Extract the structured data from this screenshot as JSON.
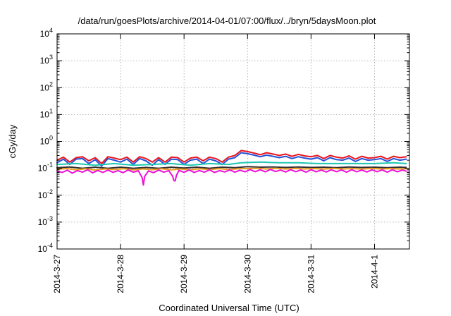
{
  "chart_data": {
    "type": "line",
    "title": "/data/run/goesPlots/archive/2014-04-01/07:00/flux/../bryn/5daysMoon.plot",
    "xlabel": "Coordinated Universal Time (UTC)",
    "ylabel": "cGy/day",
    "yscale": "log",
    "ylim": [
      0.0001,
      10000
    ],
    "xlim_days": [
      0,
      5.55
    ],
    "grid": true,
    "legend": "none",
    "yticks": [
      {
        "value": 0.0001,
        "mantissa": "10",
        "exp": "-4"
      },
      {
        "value": 0.001,
        "mantissa": "10",
        "exp": "-3"
      },
      {
        "value": 0.01,
        "mantissa": "10",
        "exp": "-2"
      },
      {
        "value": 0.1,
        "mantissa": "10",
        "exp": "-1"
      },
      {
        "value": 1,
        "mantissa": "10",
        "exp": "0"
      },
      {
        "value": 10,
        "mantissa": "10",
        "exp": "1"
      },
      {
        "value": 100,
        "mantissa": "10",
        "exp": "2"
      },
      {
        "value": 1000,
        "mantissa": "10",
        "exp": "3"
      },
      {
        "value": 10000,
        "mantissa": "10",
        "exp": "4"
      }
    ],
    "xticks": [
      {
        "day": 0,
        "label": "2014-3-27"
      },
      {
        "day": 1,
        "label": "2014-3-28"
      },
      {
        "day": 2,
        "label": "2014-3-29"
      },
      {
        "day": 3,
        "label": "2014-3-30"
      },
      {
        "day": 4,
        "label": "2014-3-31"
      },
      {
        "day": 5,
        "label": "2014-4-1"
      }
    ],
    "series": [
      {
        "color": "#e8141e",
        "points": [
          [
            0,
            0.2
          ],
          [
            0.1,
            0.26
          ],
          [
            0.2,
            0.17
          ],
          [
            0.3,
            0.25
          ],
          [
            0.4,
            0.27
          ],
          [
            0.5,
            0.19
          ],
          [
            0.6,
            0.25
          ],
          [
            0.7,
            0.15
          ],
          [
            0.8,
            0.27
          ],
          [
            0.9,
            0.24
          ],
          [
            1.0,
            0.21
          ],
          [
            1.1,
            0.26
          ],
          [
            1.2,
            0.17
          ],
          [
            1.3,
            0.27
          ],
          [
            1.4,
            0.23
          ],
          [
            1.5,
            0.17
          ],
          [
            1.6,
            0.25
          ],
          [
            1.7,
            0.17
          ],
          [
            1.8,
            0.26
          ],
          [
            1.9,
            0.25
          ],
          [
            2.0,
            0.17
          ],
          [
            2.1,
            0.24
          ],
          [
            2.2,
            0.26
          ],
          [
            2.3,
            0.19
          ],
          [
            2.4,
            0.26
          ],
          [
            2.5,
            0.23
          ],
          [
            2.6,
            0.17
          ],
          [
            2.7,
            0.26
          ],
          [
            2.8,
            0.3
          ],
          [
            2.9,
            0.46
          ],
          [
            3.0,
            0.42
          ],
          [
            3.1,
            0.37
          ],
          [
            3.2,
            0.32
          ],
          [
            3.3,
            0.38
          ],
          [
            3.4,
            0.34
          ],
          [
            3.5,
            0.3
          ],
          [
            3.6,
            0.34
          ],
          [
            3.7,
            0.28
          ],
          [
            3.8,
            0.33
          ],
          [
            3.9,
            0.29
          ],
          [
            4.0,
            0.27
          ],
          [
            4.1,
            0.3
          ],
          [
            4.2,
            0.23
          ],
          [
            4.3,
            0.3
          ],
          [
            4.4,
            0.26
          ],
          [
            4.5,
            0.24
          ],
          [
            4.6,
            0.29
          ],
          [
            4.7,
            0.22
          ],
          [
            4.8,
            0.28
          ],
          [
            4.9,
            0.24
          ],
          [
            5.0,
            0.25
          ],
          [
            5.1,
            0.28
          ],
          [
            5.2,
            0.22
          ],
          [
            5.3,
            0.28
          ],
          [
            5.4,
            0.25
          ],
          [
            5.5,
            0.27
          ]
        ]
      },
      {
        "color": "#2450d8",
        "points": [
          [
            0,
            0.16
          ],
          [
            0.1,
            0.22
          ],
          [
            0.2,
            0.14
          ],
          [
            0.3,
            0.22
          ],
          [
            0.4,
            0.23
          ],
          [
            0.5,
            0.15
          ],
          [
            0.6,
            0.21
          ],
          [
            0.7,
            0.12
          ],
          [
            0.8,
            0.23
          ],
          [
            0.9,
            0.2
          ],
          [
            1.0,
            0.17
          ],
          [
            1.1,
            0.22
          ],
          [
            1.2,
            0.14
          ],
          [
            1.3,
            0.23
          ],
          [
            1.4,
            0.19
          ],
          [
            1.5,
            0.13
          ],
          [
            1.6,
            0.21
          ],
          [
            1.7,
            0.14
          ],
          [
            1.8,
            0.22
          ],
          [
            1.9,
            0.21
          ],
          [
            2.0,
            0.14
          ],
          [
            2.1,
            0.2
          ],
          [
            2.2,
            0.22
          ],
          [
            2.3,
            0.15
          ],
          [
            2.4,
            0.22
          ],
          [
            2.5,
            0.19
          ],
          [
            2.6,
            0.14
          ],
          [
            2.7,
            0.22
          ],
          [
            2.8,
            0.25
          ],
          [
            2.9,
            0.38
          ],
          [
            3.0,
            0.35
          ],
          [
            3.1,
            0.31
          ],
          [
            3.2,
            0.27
          ],
          [
            3.3,
            0.31
          ],
          [
            3.4,
            0.28
          ],
          [
            3.5,
            0.25
          ],
          [
            3.6,
            0.28
          ],
          [
            3.7,
            0.23
          ],
          [
            3.8,
            0.27
          ],
          [
            3.9,
            0.24
          ],
          [
            4.0,
            0.22
          ],
          [
            4.1,
            0.25
          ],
          [
            4.2,
            0.19
          ],
          [
            4.3,
            0.25
          ],
          [
            4.4,
            0.21
          ],
          [
            4.5,
            0.2
          ],
          [
            4.6,
            0.24
          ],
          [
            4.7,
            0.18
          ],
          [
            4.8,
            0.23
          ],
          [
            4.9,
            0.2
          ],
          [
            5.0,
            0.21
          ],
          [
            5.1,
            0.23
          ],
          [
            5.2,
            0.18
          ],
          [
            5.3,
            0.23
          ],
          [
            5.4,
            0.2
          ],
          [
            5.5,
            0.22
          ]
        ]
      },
      {
        "color": "#1ec8b4",
        "points": [
          [
            0,
            0.14
          ],
          [
            0.3,
            0.15
          ],
          [
            0.6,
            0.13
          ],
          [
            0.9,
            0.15
          ],
          [
            1.2,
            0.13
          ],
          [
            1.5,
            0.14
          ],
          [
            1.8,
            0.15
          ],
          [
            2.1,
            0.13
          ],
          [
            2.4,
            0.15
          ],
          [
            2.7,
            0.14
          ],
          [
            2.9,
            0.16
          ],
          [
            3.2,
            0.17
          ],
          [
            3.5,
            0.16
          ],
          [
            3.8,
            0.16
          ],
          [
            4.1,
            0.15
          ],
          [
            4.4,
            0.15
          ],
          [
            4.7,
            0.15
          ],
          [
            5.0,
            0.15
          ],
          [
            5.3,
            0.16
          ],
          [
            5.5,
            0.15
          ]
        ]
      },
      {
        "color": "#303030",
        "points": [
          [
            0,
            0.105
          ],
          [
            0.2,
            0.112
          ],
          [
            0.4,
            0.1
          ],
          [
            0.6,
            0.11
          ],
          [
            0.8,
            0.1
          ],
          [
            1.0,
            0.11
          ],
          [
            1.2,
            0.1
          ],
          [
            1.4,
            0.108
          ],
          [
            1.6,
            0.1
          ],
          [
            1.8,
            0.11
          ],
          [
            2.0,
            0.102
          ],
          [
            2.2,
            0.11
          ],
          [
            2.4,
            0.1
          ],
          [
            2.6,
            0.11
          ],
          [
            2.8,
            0.105
          ],
          [
            3.0,
            0.115
          ],
          [
            3.2,
            0.11
          ],
          [
            3.4,
            0.112
          ],
          [
            3.6,
            0.108
          ],
          [
            3.8,
            0.112
          ],
          [
            4.0,
            0.108
          ],
          [
            4.2,
            0.11
          ],
          [
            4.4,
            0.106
          ],
          [
            4.6,
            0.112
          ],
          [
            4.8,
            0.108
          ],
          [
            5.0,
            0.11
          ],
          [
            5.2,
            0.106
          ],
          [
            5.4,
            0.11
          ],
          [
            5.5,
            0.108
          ]
        ]
      },
      {
        "color": "#ec9a1e",
        "points": [
          [
            0,
            0.092
          ],
          [
            0.15,
            0.098
          ],
          [
            0.3,
            0.088
          ],
          [
            0.45,
            0.096
          ],
          [
            0.6,
            0.086
          ],
          [
            0.75,
            0.095
          ],
          [
            0.9,
            0.09
          ],
          [
            1.05,
            0.097
          ],
          [
            1.2,
            0.087
          ],
          [
            1.35,
            0.095
          ],
          [
            1.5,
            0.089
          ],
          [
            1.65,
            0.096
          ],
          [
            1.8,
            0.088
          ],
          [
            1.95,
            0.094
          ],
          [
            2.1,
            0.088
          ],
          [
            2.25,
            0.096
          ],
          [
            2.4,
            0.09
          ],
          [
            2.55,
            0.097
          ],
          [
            2.7,
            0.09
          ],
          [
            2.85,
            0.096
          ],
          [
            3.0,
            0.098
          ],
          [
            3.15,
            0.1
          ],
          [
            3.3,
            0.095
          ],
          [
            3.45,
            0.1
          ],
          [
            3.6,
            0.094
          ],
          [
            3.75,
            0.099
          ],
          [
            3.9,
            0.095
          ],
          [
            4.05,
            0.098
          ],
          [
            4.2,
            0.093
          ],
          [
            4.35,
            0.099
          ],
          [
            4.5,
            0.094
          ],
          [
            4.65,
            0.098
          ],
          [
            4.8,
            0.093
          ],
          [
            4.95,
            0.099
          ],
          [
            5.1,
            0.094
          ],
          [
            5.25,
            0.098
          ],
          [
            5.4,
            0.094
          ],
          [
            5.5,
            0.097
          ]
        ]
      },
      {
        "color": "#ee10d8",
        "points": [
          [
            0,
            0.08
          ],
          [
            0.08,
            0.07
          ],
          [
            0.16,
            0.085
          ],
          [
            0.24,
            0.066
          ],
          [
            0.32,
            0.082
          ],
          [
            0.4,
            0.072
          ],
          [
            0.48,
            0.088
          ],
          [
            0.56,
            0.068
          ],
          [
            0.64,
            0.083
          ],
          [
            0.72,
            0.07
          ],
          [
            0.8,
            0.086
          ],
          [
            0.88,
            0.071
          ],
          [
            0.96,
            0.082
          ],
          [
            1.04,
            0.069
          ],
          [
            1.12,
            0.087
          ],
          [
            1.2,
            0.072
          ],
          [
            1.28,
            0.081
          ],
          [
            1.34,
            0.045
          ],
          [
            1.36,
            0.024
          ],
          [
            1.38,
            0.05
          ],
          [
            1.44,
            0.08
          ],
          [
            1.52,
            0.069
          ],
          [
            1.6,
            0.086
          ],
          [
            1.68,
            0.072
          ],
          [
            1.76,
            0.082
          ],
          [
            1.82,
            0.05
          ],
          [
            1.84,
            0.035
          ],
          [
            1.86,
            0.034
          ],
          [
            1.88,
            0.055
          ],
          [
            1.92,
            0.084
          ],
          [
            2.0,
            0.071
          ],
          [
            2.08,
            0.087
          ],
          [
            2.16,
            0.07
          ],
          [
            2.24,
            0.083
          ],
          [
            2.32,
            0.072
          ],
          [
            2.4,
            0.088
          ],
          [
            2.48,
            0.07
          ],
          [
            2.56,
            0.082
          ],
          [
            2.64,
            0.073
          ],
          [
            2.72,
            0.087
          ],
          [
            2.8,
            0.072
          ],
          [
            2.88,
            0.085
          ],
          [
            2.96,
            0.074
          ],
          [
            3.04,
            0.09
          ],
          [
            3.12,
            0.075
          ],
          [
            3.2,
            0.088
          ],
          [
            3.28,
            0.074
          ],
          [
            3.36,
            0.091
          ],
          [
            3.44,
            0.076
          ],
          [
            3.52,
            0.086
          ],
          [
            3.6,
            0.073
          ],
          [
            3.68,
            0.089
          ],
          [
            3.76,
            0.075
          ],
          [
            3.84,
            0.087
          ],
          [
            3.92,
            0.072
          ],
          [
            4.0,
            0.089
          ],
          [
            4.08,
            0.074
          ],
          [
            4.16,
            0.086
          ],
          [
            4.24,
            0.073
          ],
          [
            4.32,
            0.088
          ],
          [
            4.4,
            0.075
          ],
          [
            4.48,
            0.087
          ],
          [
            4.56,
            0.072
          ],
          [
            4.64,
            0.089
          ],
          [
            4.72,
            0.074
          ],
          [
            4.8,
            0.086
          ],
          [
            4.88,
            0.073
          ],
          [
            4.96,
            0.088
          ],
          [
            5.04,
            0.075
          ],
          [
            5.12,
            0.087
          ],
          [
            5.2,
            0.072
          ],
          [
            5.28,
            0.089
          ],
          [
            5.36,
            0.074
          ],
          [
            5.44,
            0.086
          ],
          [
            5.5,
            0.078
          ]
        ]
      }
    ]
  }
}
